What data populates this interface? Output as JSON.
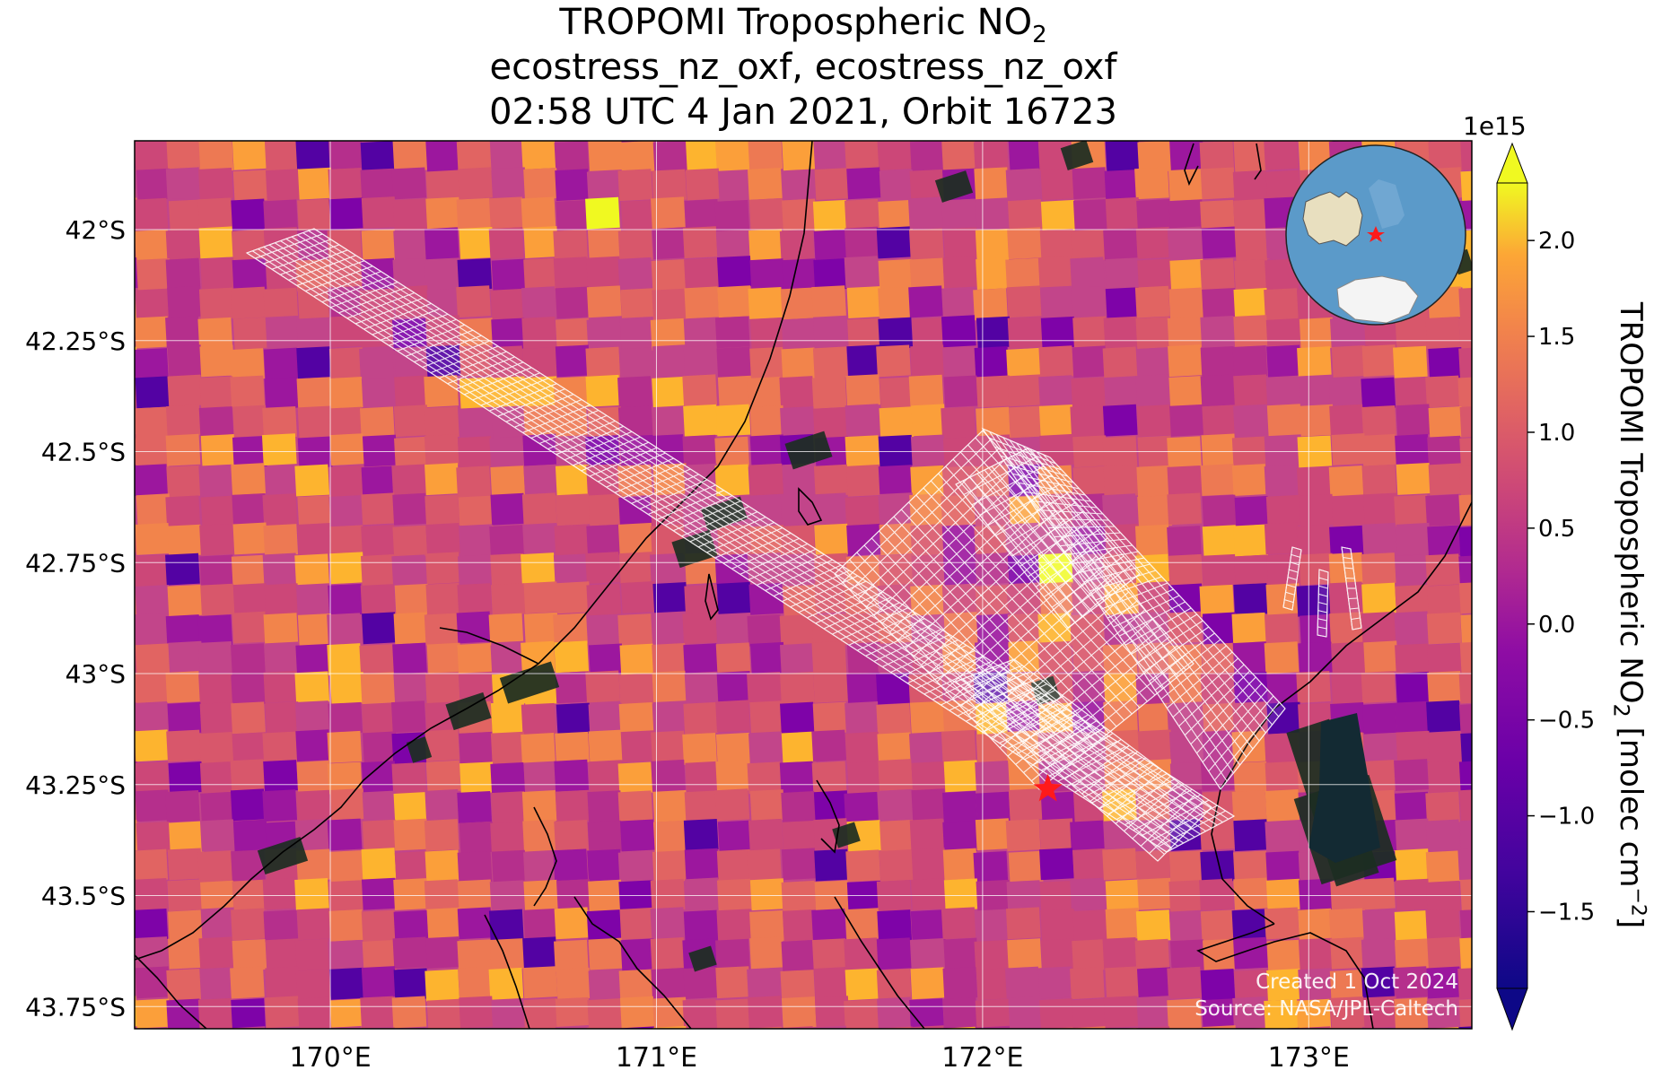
{
  "title": {
    "line1_prefix": "TROPOMI Tropospheric NO",
    "line1_sub": "2",
    "line2": "ecostress_nz_oxf, ecostress_nz_oxf",
    "line3": "02:58 UTC 4 Jan 2021, Orbit 16723"
  },
  "map": {
    "lat_ticks": [
      "42°S",
      "42.25°S",
      "42.5°S",
      "42.75°S",
      "43°S",
      "43.25°S",
      "43.5°S",
      "43.75°S"
    ],
    "lon_ticks": [
      "170°E",
      "171°E",
      "172°E",
      "173°E"
    ],
    "lon_range": [
      169.4,
      173.5
    ],
    "lat_range": [
      -41.8,
      -43.8
    ],
    "marker": {
      "lon": 172.2,
      "lat": -43.26,
      "color": "#ff1a1a"
    }
  },
  "colorbar": {
    "label_prefix": "TROPOMI Tropospheric NO",
    "label_sub": "2",
    "label_suffix": " [molec cm",
    "label_sup": "−2",
    "label_end": "]",
    "exponent": "1e15",
    "ticks": [
      "2.0",
      "1.5",
      "1.0",
      "0.5",
      "0.0",
      "−0.5",
      "−1.0",
      "−1.5"
    ],
    "tick_values": [
      2.0,
      1.5,
      1.0,
      0.5,
      0.0,
      -0.5,
      -1.0,
      -1.5
    ],
    "range": [
      -1.9,
      2.3
    ],
    "colormap": "plasma"
  },
  "credit": {
    "line1": "Created 1 Oct 2024",
    "line2": "Source: NASA/JPL-Caltech"
  },
  "colors": {
    "grid": "#ffffff",
    "coast": "#000000",
    "footprint": "#ffffff",
    "ocean_inset": "#5b9ac9",
    "land_inset": "#e8dfbf"
  }
}
